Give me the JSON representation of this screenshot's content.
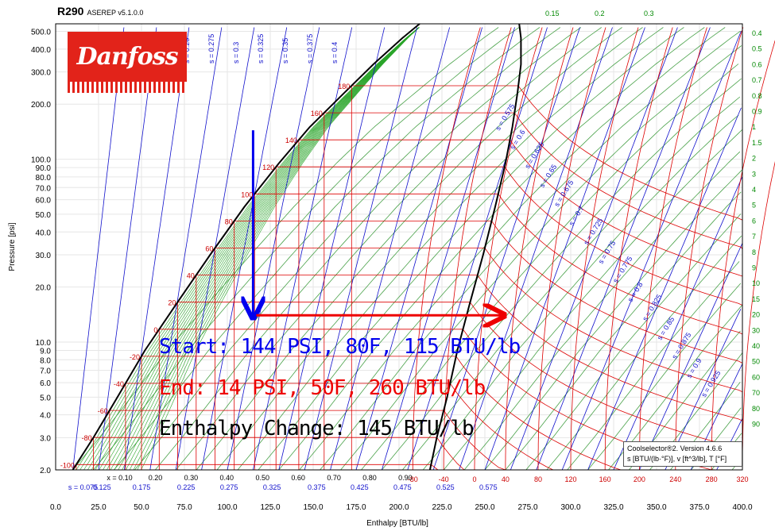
{
  "header": {
    "title": "R290",
    "version": "ASEREP v5.1.0.0"
  },
  "logo": {
    "text": "Danfoss",
    "color": "#e2231a"
  },
  "footer_note": {
    "line1": "Coolselector®2. Version 4.6.6",
    "line2": "s [BTU/(lb·°F)], v [ft^3/lb], T [°F]"
  },
  "annotations": {
    "start": "Start: 144 PSI, 80F, 115 BTU/lb",
    "end": "End: 14 PSI, 50F, 260 BTU/lb",
    "change": "Enthalpy Change: 145 BTU/lb",
    "start_color": "#0000ee",
    "end_color": "#ee0000",
    "change_color": "#000000"
  },
  "chart_data": {
    "type": "line",
    "chart_kind": "pressure-enthalpy diagram",
    "xlabel": "Enthalpy [BTU/lb]",
    "ylabel": "Pressure [psi]",
    "xlim": [
      0,
      400
    ],
    "ylim": [
      2,
      550
    ],
    "y_scale": "log",
    "grid": true,
    "x_ticks": [
      "0.0",
      "25.0",
      "50.0",
      "75.0",
      "100.0",
      "125.0",
      "150.0",
      "175.0",
      "200.0",
      "225.0",
      "250.0",
      "275.0",
      "300.0",
      "325.0",
      "350.0",
      "375.0",
      "400.0"
    ],
    "y_ticks": [
      {
        "v": 2,
        "label": "2.0"
      },
      {
        "v": 3,
        "label": "3.0"
      },
      {
        "v": 4,
        "label": "4.0"
      },
      {
        "v": 5,
        "label": "5.0"
      },
      {
        "v": 6,
        "label": "6.0"
      },
      {
        "v": 7,
        "label": "7.0"
      },
      {
        "v": 8,
        "label": "8.0"
      },
      {
        "v": 9,
        "label": "9.0"
      },
      {
        "v": 10,
        "label": "10.0"
      },
      {
        "v": 20,
        "label": "20.0"
      },
      {
        "v": 30,
        "label": "30.0"
      },
      {
        "v": 40,
        "label": "40.0"
      },
      {
        "v": 50,
        "label": "50.0"
      },
      {
        "v": 60,
        "label": "60.0"
      },
      {
        "v": 70,
        "label": "70.0"
      },
      {
        "v": 80,
        "label": "80.0"
      },
      {
        "v": 90,
        "label": "90.0"
      },
      {
        "v": 100,
        "label": "100.0"
      },
      {
        "v": 200,
        "label": "200.0"
      },
      {
        "v": 300,
        "label": "300.0"
      },
      {
        "v": 400,
        "label": "400.0"
      },
      {
        "v": 500,
        "label": "500.0"
      }
    ],
    "quality_labels": [
      {
        "x": 0.1,
        "label": "x = 0.10"
      },
      {
        "x": 0.2,
        "label": "0.20"
      },
      {
        "x": 0.3,
        "label": "0.30"
      },
      {
        "x": 0.4,
        "label": "0.40"
      },
      {
        "x": 0.5,
        "label": "0.50"
      },
      {
        "x": 0.6,
        "label": "0.60"
      },
      {
        "x": 0.7,
        "label": "0.70"
      },
      {
        "x": 0.8,
        "label": "0.80"
      },
      {
        "x": 0.9,
        "label": "0.90"
      }
    ],
    "entropy_bottom_labels": [
      {
        "h": 16,
        "label": "s = 0.075"
      },
      {
        "h": 27,
        "label": "0.125"
      },
      {
        "h": 50,
        "label": "0.175"
      },
      {
        "h": 76,
        "label": "0.225"
      },
      {
        "h": 101,
        "label": "0.275"
      },
      {
        "h": 126,
        "label": "0.325"
      },
      {
        "h": 152,
        "label": "0.375"
      },
      {
        "h": 177,
        "label": "0.425"
      },
      {
        "h": 202,
        "label": "0.475"
      },
      {
        "h": 227,
        "label": "0.525"
      },
      {
        "h": 252,
        "label": "0.575"
      }
    ],
    "entropy_top_labels": [
      "s = 0.25",
      "s = 0.275",
      "s = 0.3",
      "s = 0.325",
      "s = 0.35",
      "s = 0.375",
      "s = 0.4"
    ],
    "entropy_diagonal_labels": [
      "s = 0.575",
      "s = 0.6",
      "s = 0.625",
      "s = 0.65",
      "s = 0.675",
      "s = 0.7",
      "s = 0.725",
      "s = 0.75",
      "s = 0.775",
      "s = 0.8",
      "s = 0.825",
      "s = 0.85",
      "s = 0.875",
      "s = 0.9",
      "s = 0.925"
    ],
    "temperature_bottom_labels": [
      {
        "h": 208,
        "label": "-80"
      },
      {
        "h": 226,
        "label": "-40"
      },
      {
        "h": 244,
        "label": "0"
      },
      {
        "h": 262,
        "label": "40"
      },
      {
        "h": 281,
        "label": "80"
      },
      {
        "h": 300,
        "label": "120"
      },
      {
        "h": 320,
        "label": "160"
      },
      {
        "h": 340,
        "label": "200"
      },
      {
        "h": 361,
        "label": "240"
      },
      {
        "h": 382,
        "label": "280"
      },
      {
        "h": 400,
        "label": "320"
      }
    ],
    "temperature_dome_labels": [
      {
        "T": -100,
        "label": "-100"
      },
      {
        "T": -80,
        "label": "-80"
      },
      {
        "T": -60,
        "label": "-60"
      },
      {
        "T": -40,
        "label": "-40"
      },
      {
        "T": -20,
        "label": "-20"
      },
      {
        "T": 0,
        "label": "0"
      },
      {
        "T": 20,
        "label": "20"
      },
      {
        "T": 40,
        "label": "40"
      },
      {
        "T": 60,
        "label": "60"
      },
      {
        "T": 80,
        "label": "80"
      },
      {
        "T": 100,
        "label": "100"
      },
      {
        "T": 120,
        "label": "120"
      },
      {
        "T": 140,
        "label": "140"
      },
      {
        "T": 160,
        "label": "160"
      },
      {
        "T": 180,
        "label": "180"
      }
    ],
    "volume_labels": [
      "0.15",
      "0.2",
      "0.3",
      "0.4",
      "0.5",
      "0.6",
      "0.7",
      "0.8",
      "0.9",
      "1",
      "1.5",
      "2",
      "3",
      "4",
      "5",
      "6",
      "7",
      "8",
      "9",
      "10",
      "15",
      "20",
      "30",
      "40",
      "50",
      "60",
      "70",
      "80",
      "90"
    ],
    "saturation": {
      "liquid": [
        [
          10,
          2
        ],
        [
          22,
          3
        ],
        [
          36,
          5
        ],
        [
          52,
          9
        ],
        [
          70,
          16
        ],
        [
          90,
          30
        ],
        [
          110,
          55
        ],
        [
          130,
          95
        ],
        [
          148,
          150
        ],
        [
          168,
          230
        ],
        [
          185,
          330
        ],
        [
          202,
          460
        ],
        [
          212,
          550
        ]
      ],
      "vapor": [
        [
          218,
          2
        ],
        [
          222,
          3
        ],
        [
          228,
          5
        ],
        [
          234,
          9
        ],
        [
          241,
          16
        ],
        [
          249,
          30
        ],
        [
          256,
          55
        ],
        [
          262,
          95
        ],
        [
          266,
          150
        ],
        [
          269,
          230
        ],
        [
          271,
          330
        ],
        [
          271,
          460
        ],
        [
          270,
          550
        ]
      ]
    },
    "process": {
      "start": {
        "h": 115,
        "p": 144
      },
      "mid": {
        "h": 115,
        "p": 14
      },
      "end": {
        "h": 260,
        "p": 14
      }
    },
    "colors": {
      "isotherm": "#dd0000",
      "isentrope": "#0000cc",
      "isochore": "#008800",
      "saturation": "#000000",
      "quality": "#22aa22",
      "arrow_down": "#0000ee",
      "arrow_right": "#ee0000"
    }
  }
}
